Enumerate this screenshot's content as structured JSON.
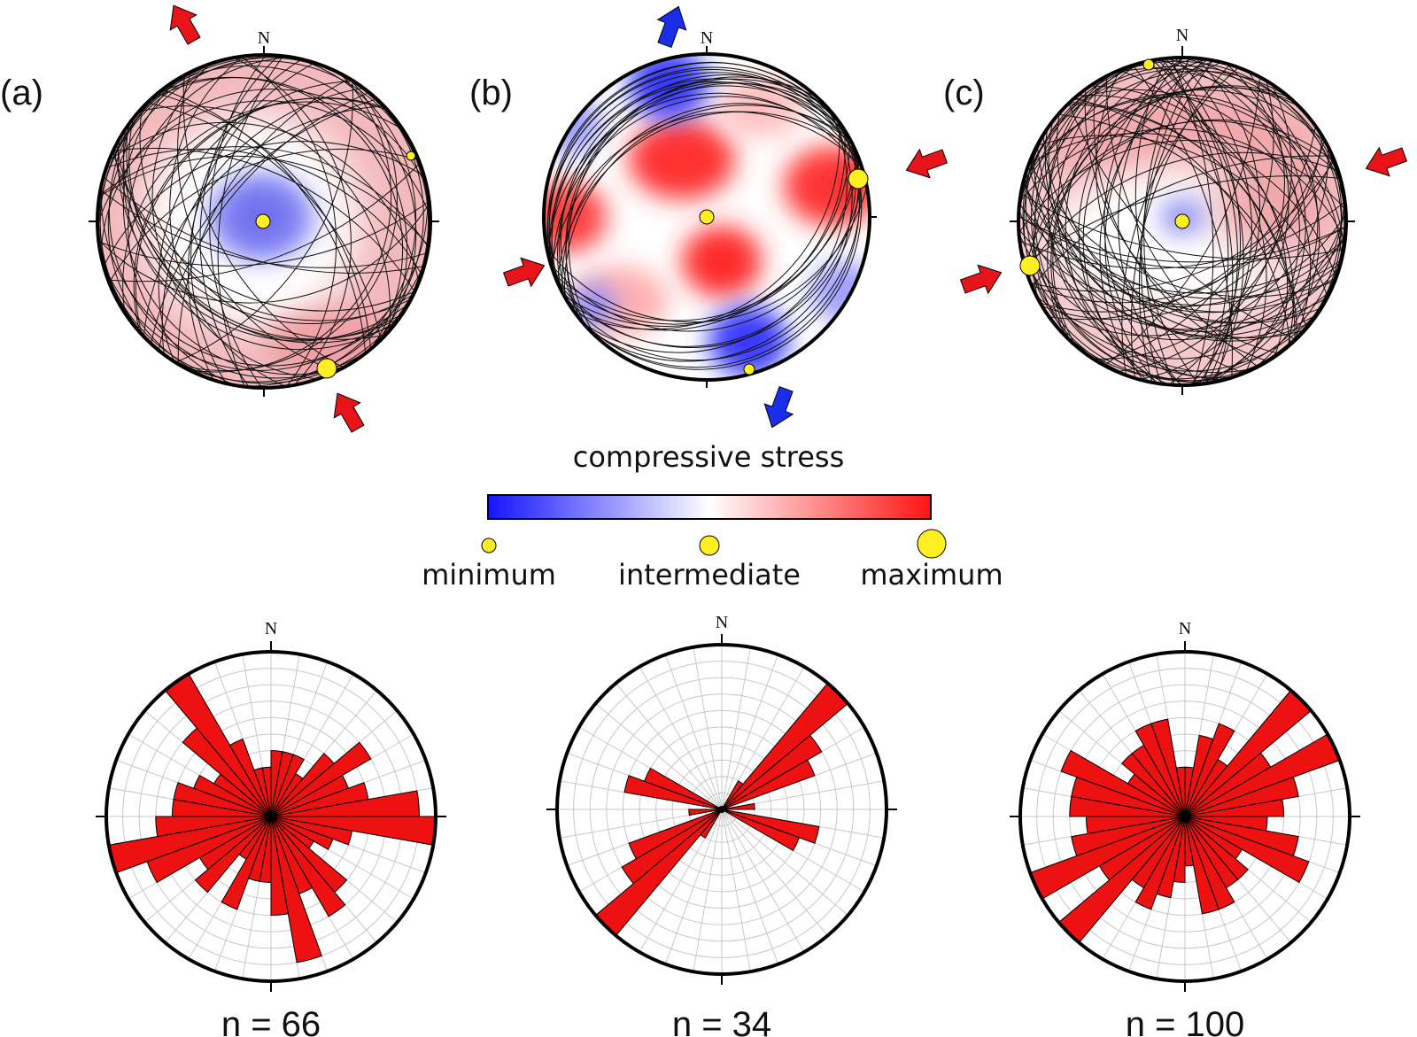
{
  "panels": [
    {
      "label": "(a)",
      "north": "N",
      "type": "stereonet-point-max",
      "arrows": {
        "color": "#e8141a",
        "azimuth": 150,
        "mode": "compression"
      },
      "stress_points": [
        {
          "size": "minimum",
          "trend": 70
        },
        {
          "size": "maximum",
          "trend": 160
        },
        {
          "size": "intermediate",
          "trend": null
        }
      ]
    },
    {
      "label": "(b)",
      "north": "N",
      "type": "stereonet-quadrant",
      "arrows": [
        {
          "color": "#e8141a",
          "azimuth": 70,
          "mode": "compression"
        },
        {
          "color": "#1a2de8",
          "azimuth": 160,
          "mode": "extension"
        }
      ],
      "stress_points": [
        {
          "size": "maximum",
          "trend": 80
        },
        {
          "size": "minimum",
          "trend": 165
        },
        {
          "size": "intermediate",
          "trend": null
        }
      ]
    },
    {
      "label": "(c)",
      "north": "N",
      "type": "stereonet-random",
      "arrows": {
        "color": "#e8141a",
        "azimuth": 70,
        "mode": "compression"
      },
      "stress_points": [
        {
          "size": "minimum",
          "trend": 5
        },
        {
          "size": "maximum",
          "trend": 250
        },
        {
          "size": "intermediate",
          "trend": null
        }
      ]
    }
  ],
  "legend": {
    "title": "compressive stress",
    "colors": {
      "low": "#1414ff",
      "mid": "#ffffff",
      "high": "#ff1414"
    },
    "point_color": "#ffee22",
    "labels": [
      "minimum",
      "intermediate",
      "maximum"
    ]
  },
  "chart_data": [
    {
      "type": "rose",
      "north": "N",
      "n_label": "n = 66",
      "bin_width_deg": 10,
      "values": [
        4,
        4,
        4,
        3,
        5,
        7,
        5,
        6,
        9,
        10,
        5,
        4,
        3,
        6,
        7,
        5,
        9,
        6,
        4,
        4,
        6,
        3,
        6,
        5,
        8,
        10,
        7,
        6,
        6,
        5,
        4,
        7,
        10,
        5,
        3,
        3
      ]
    },
    {
      "type": "rose",
      "north": "N",
      "n_label": "n = 34",
      "bin_width_deg": 10,
      "values": [
        0,
        0,
        0,
        2,
        10,
        7,
        6,
        0,
        2,
        0,
        6,
        5,
        0,
        0,
        0,
        0,
        0,
        0,
        0,
        0,
        0,
        2,
        10,
        7,
        6,
        0,
        2,
        0,
        6,
        5,
        0,
        0,
        0,
        0,
        0,
        0
      ]
    },
    {
      "type": "rose",
      "north": "N",
      "n_label": "n = 100",
      "bin_width_deg": 10,
      "values": [
        3,
        5,
        6,
        4,
        10,
        6,
        10,
        7,
        6,
        5,
        7,
        8,
        4,
        5,
        5,
        6,
        6,
        3,
        4,
        5,
        6,
        5,
        10,
        6,
        10,
        7,
        6,
        7,
        7,
        8,
        4,
        5,
        5,
        6,
        6,
        3
      ]
    }
  ]
}
